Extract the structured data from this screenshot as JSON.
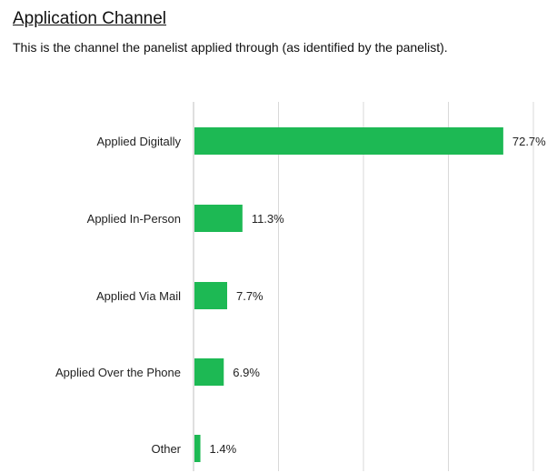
{
  "title": "Application Channel",
  "subtitle": "This is the channel the panelist applied through (as identified by the panelist).",
  "colors": {
    "bar": "#1db954",
    "grid": "#d9d9d9",
    "axis": "#bfbfbf"
  },
  "chart_data": {
    "type": "bar",
    "orientation": "horizontal",
    "categories": [
      "Applied Digitally",
      "Applied In-Person",
      "Applied Via Mail",
      "Applied Over the Phone",
      "Other"
    ],
    "values": [
      72.7,
      11.3,
      7.7,
      6.9,
      1.4
    ],
    "value_labels": [
      "72.7%",
      "11.3%",
      "7.7%",
      "6.9%",
      "1.4%"
    ],
    "xlim": [
      0,
      80
    ],
    "grid": true,
    "legend": false
  }
}
